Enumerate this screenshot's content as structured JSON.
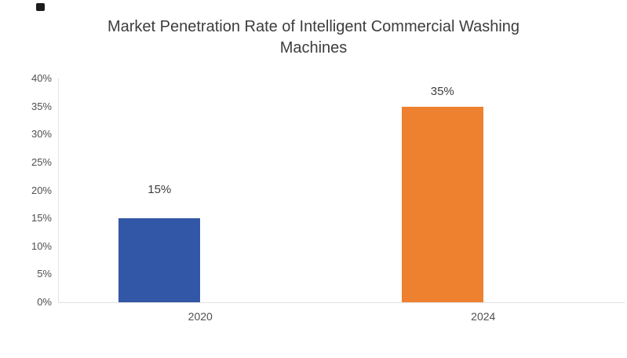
{
  "chart_data": {
    "type": "bar",
    "title": "Market Penetration Rate of Intelligent Commercial Washing Machines",
    "categories": [
      "2020",
      "2024"
    ],
    "values": [
      15,
      35
    ],
    "value_labels": [
      "15%",
      "35%"
    ],
    "y_tick_labels": [
      "0%",
      "5%",
      "10%",
      "15%",
      "20%",
      "25%",
      "30%",
      "35%",
      "40%"
    ],
    "y_tick_step": 5,
    "ylim": [
      0,
      40
    ],
    "xlabel": "",
    "ylabel": "",
    "grid": false,
    "legend": false,
    "bar_colors": [
      "#3257A6",
      "#EE8130"
    ]
  },
  "colors": {
    "background": "#ffffff",
    "title_text": "#3d3d3d",
    "axis_text": "#4f4f4f",
    "value_label_text": "#3d3d3d",
    "axis_line": "#e3e3e3"
  },
  "icons": {
    "corner_mark": "black-square"
  }
}
